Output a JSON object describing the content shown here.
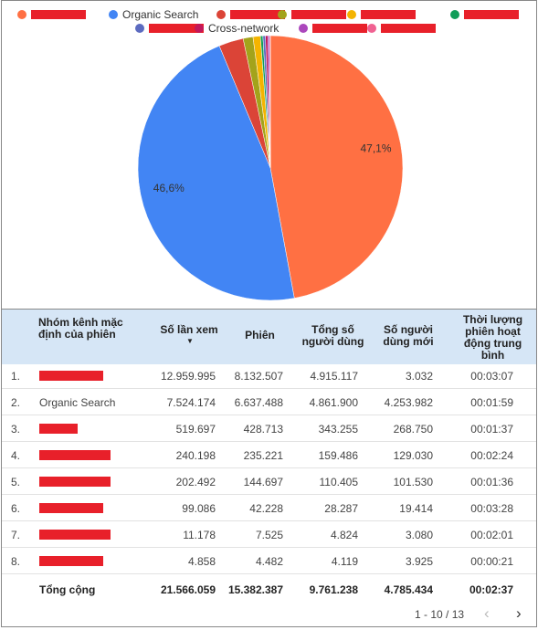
{
  "chart_data": {
    "type": "pie",
    "series": [
      {
        "name": null,
        "color": "#ff7043",
        "values": [
          47.1
        ],
        "value_labels": [
          "47,1%"
        ]
      },
      {
        "name": "Organic Search",
        "color": "#4285f4",
        "values": [
          46.6
        ],
        "value_labels": [
          "46,6%"
        ]
      },
      {
        "name": null,
        "color": "#db4437",
        "values": [
          3.0
        ]
      },
      {
        "name": null,
        "color": "#a3a31b",
        "values": [
          1.2
        ]
      },
      {
        "name": null,
        "color": "#f4b400",
        "values": [
          0.9
        ]
      },
      {
        "name": null,
        "color": "#0f9d58",
        "values": [
          0.3
        ]
      },
      {
        "name": null,
        "color": "#5c6bc0",
        "values": [
          0.3
        ]
      },
      {
        "name": "Cross-network",
        "color": "#c2185b",
        "values": [
          0.3
        ]
      },
      {
        "name": null,
        "color": "#ab47bc",
        "values": [
          0.2
        ]
      },
      {
        "name": null,
        "color": "#f06292",
        "values": [
          0.1
        ]
      }
    ]
  },
  "table": {
    "headers": [
      "Nhóm kênh mặc định của phiên",
      "Số lần xem",
      "Phiên",
      "Tổng số người dùng",
      "Số người dùng mới",
      "Thời lượng phiên hoạt động trung bình"
    ],
    "rows": [
      {
        "index": "1.",
        "name": null,
        "cells": [
          "12.959.995",
          "8.132.507",
          "4.915.117",
          "3.032",
          "00:03:07"
        ]
      },
      {
        "index": "2.",
        "name": "Organic Search",
        "cells": [
          "7.524.174",
          "6.637.488",
          "4.861.900",
          "4.253.982",
          "00:01:59"
        ]
      },
      {
        "index": "3.",
        "name": null,
        "cells": [
          "519.697",
          "428.713",
          "343.255",
          "268.750",
          "00:01:37"
        ]
      },
      {
        "index": "4.",
        "name": null,
        "cells": [
          "240.198",
          "235.221",
          "159.486",
          "129.030",
          "00:02:24"
        ]
      },
      {
        "index": "5.",
        "name": null,
        "cells": [
          "202.492",
          "144.697",
          "110.405",
          "101.530",
          "00:01:36"
        ]
      },
      {
        "index": "6.",
        "name": null,
        "cells": [
          "99.086",
          "42.228",
          "28.287",
          "19.414",
          "00:03:28"
        ]
      },
      {
        "index": "7.",
        "name": null,
        "cells": [
          "11.178",
          "7.525",
          "4.824",
          "3.080",
          "00:02:01"
        ]
      },
      {
        "index": "8.",
        "name": null,
        "cells": [
          "4.858",
          "4.482",
          "4.119",
          "3.925",
          "00:00:21"
        ]
      }
    ],
    "total": {
      "label": "Tổng cộng",
      "cells": [
        "21.566.059",
        "15.382.387",
        "9.761.238",
        "4.785.434",
        "00:02:37"
      ]
    },
    "pagination": "1 - 10 / 13"
  }
}
